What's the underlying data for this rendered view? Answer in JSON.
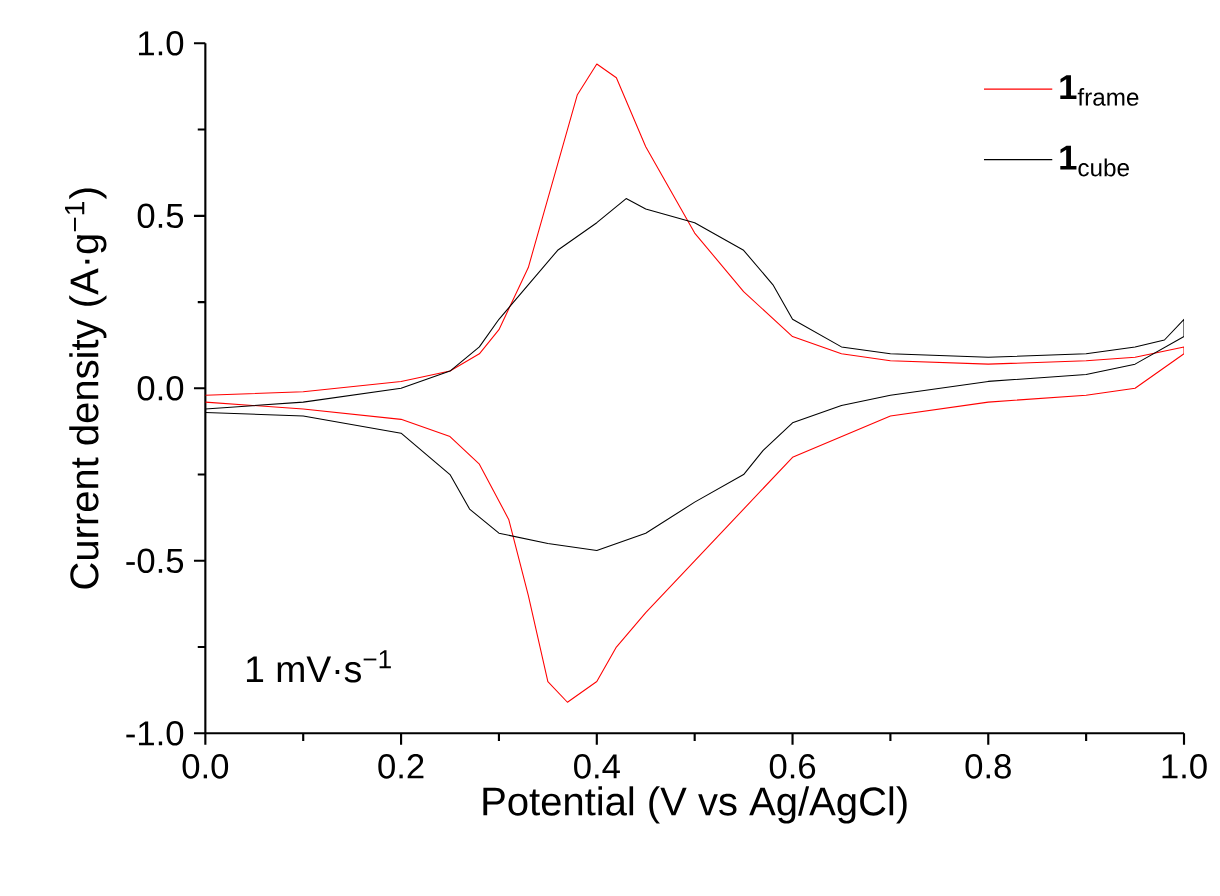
{
  "chart_data": {
    "type": "line",
    "xlabel": "Potential (V vs Ag/AgCl)",
    "ylabel": "Current density (A·g$^{−1}$)",
    "annotations": [
      "1 mV·s$^{−1}$"
    ],
    "xlim": [
      0,
      1
    ],
    "ylim": [
      -1,
      1
    ],
    "xticks": [
      {
        "value": 0,
        "label": "0.0"
      },
      0.2,
      0.4,
      0.6,
      0.8,
      {
        "value": 1,
        "label": "1.0"
      }
    ],
    "yticks": [
      {
        "value": -1,
        "label": "-1.0"
      },
      -0.5,
      {
        "value": 0,
        "label": "0.0"
      },
      0.5,
      {
        "value": 1,
        "label": "1.0"
      }
    ],
    "legend": "top right",
    "grid": false,
    "series": [
      {
        "name": "**1**$_{frame}$",
        "color": "#ff0000",
        "x": [
          0,
          0.1,
          0.2,
          0.25,
          0.28,
          0.3,
          0.33,
          0.36,
          0.38,
          0.4,
          0.42,
          0.45,
          0.5,
          0.55,
          0.6,
          0.65,
          0.7,
          0.8,
          0.9,
          0.95,
          1,
          1,
          0.95,
          0.9,
          0.8,
          0.7,
          0.6,
          0.55,
          0.5,
          0.45,
          0.42,
          0.4,
          0.37,
          0.35,
          0.33,
          0.31,
          0.28,
          0.25,
          0.2,
          0.1,
          0
        ],
        "values": [
          -0.02,
          -0.01,
          0.02,
          0.05,
          0.1,
          0.17,
          0.35,
          0.65,
          0.85,
          0.94,
          0.9,
          0.7,
          0.45,
          0.28,
          0.15,
          0.1,
          0.08,
          0.07,
          0.08,
          0.09,
          0.12,
          0.1,
          0,
          -0.02,
          -0.04,
          -0.08,
          -0.2,
          -0.35,
          -0.5,
          -0.65,
          -0.75,
          -0.85,
          -0.91,
          -0.85,
          -0.6,
          -0.38,
          -0.22,
          -0.14,
          -0.09,
          -0.06,
          -0.04
        ]
      },
      {
        "name": "**1**$_{cube}$",
        "color": "#000000",
        "x": [
          0,
          0.1,
          0.2,
          0.25,
          0.28,
          0.3,
          0.33,
          0.36,
          0.4,
          0.43,
          0.45,
          0.5,
          0.55,
          0.58,
          0.6,
          0.65,
          0.7,
          0.8,
          0.9,
          0.95,
          0.98,
          1,
          1,
          0.95,
          0.9,
          0.8,
          0.7,
          0.65,
          0.6,
          0.57,
          0.55,
          0.5,
          0.45,
          0.4,
          0.35,
          0.3,
          0.27,
          0.25,
          0.2,
          0.1,
          0
        ],
        "values": [
          -0.06,
          -0.04,
          0,
          0.05,
          0.12,
          0.2,
          0.3,
          0.4,
          0.48,
          0.55,
          0.52,
          0.48,
          0.4,
          0.3,
          0.2,
          0.12,
          0.1,
          0.09,
          0.1,
          0.12,
          0.14,
          0.2,
          0.15,
          0.07,
          0.04,
          0.02,
          -0.02,
          -0.05,
          -0.1,
          -0.18,
          -0.25,
          -0.33,
          -0.42,
          -0.47,
          -0.45,
          -0.42,
          -0.35,
          -0.25,
          -0.13,
          -0.08,
          -0.07
        ]
      }
    ]
  }
}
